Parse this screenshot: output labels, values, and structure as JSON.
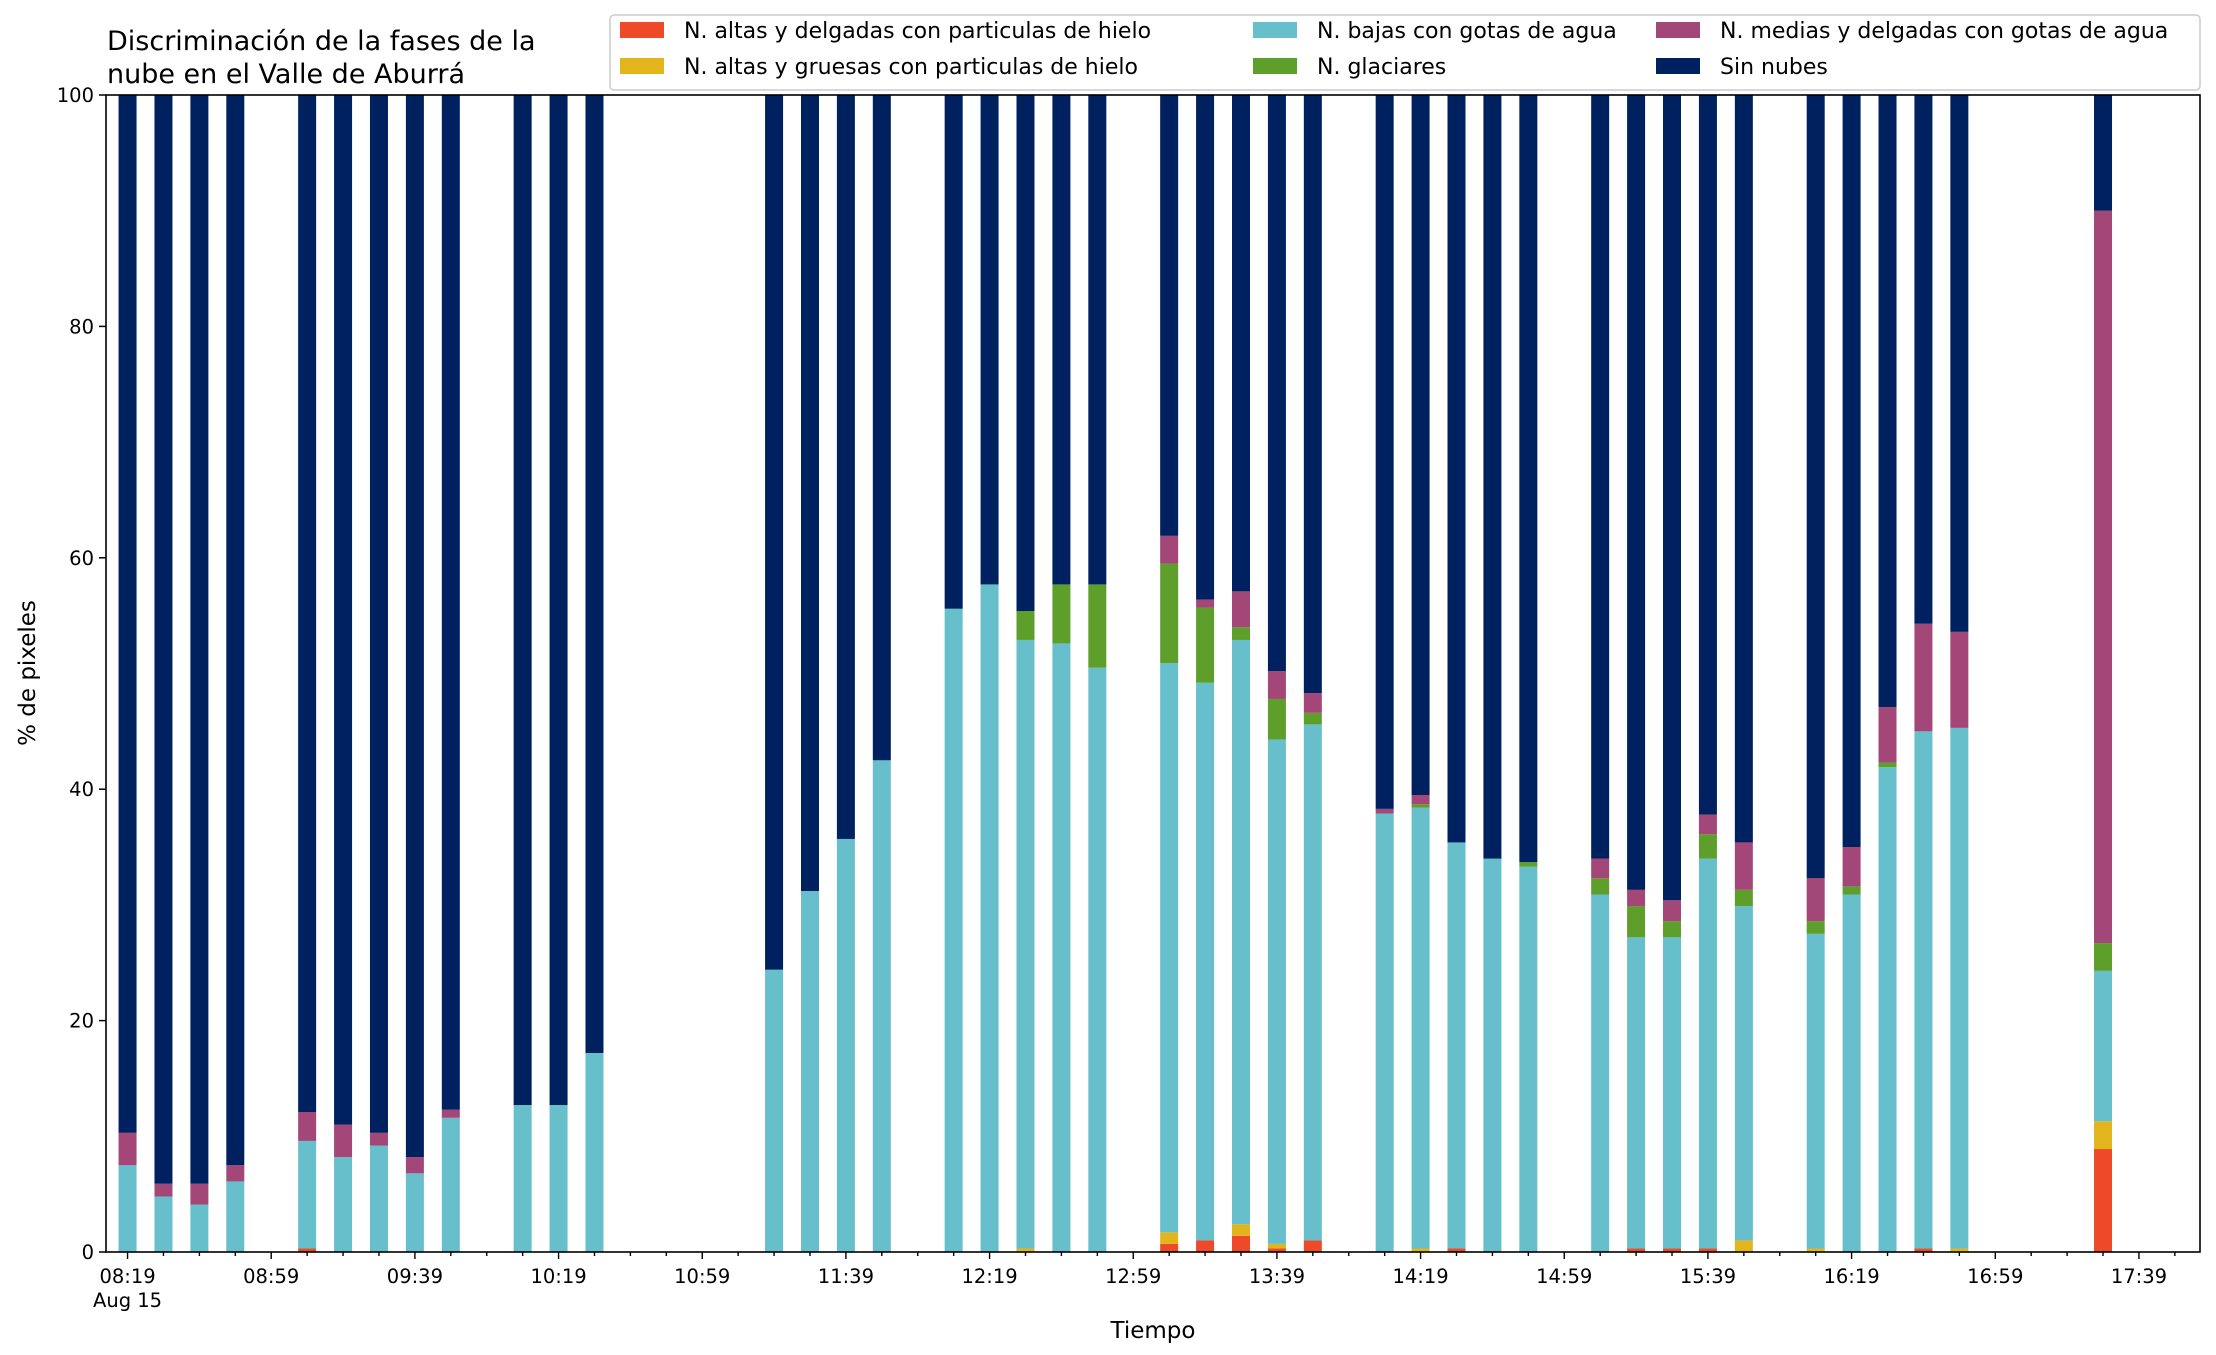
{
  "chart_data": {
    "type": "bar",
    "stacked": true,
    "title_lines": [
      "Discriminación de la fases de la",
      "nube en el Valle de Aburrá"
    ],
    "xlabel": "Tiempo",
    "ylabel": "% de pixeles",
    "ylim": [
      0,
      100
    ],
    "y_ticks": [
      "0",
      "20",
      "40",
      "60",
      "80",
      "100"
    ],
    "x_range_minutes": [
      "08:13",
      "17:56"
    ],
    "x_tick_labels": [
      "08:19",
      "08:59",
      "09:39",
      "10:19",
      "10:59",
      "11:39",
      "12:19",
      "12:59",
      "13:39",
      "14:19",
      "14:59",
      "15:39",
      "16:19",
      "16:59",
      "17:39"
    ],
    "x_date_label": "Aug 15",
    "legend_position": "top-right",
    "series": [
      {
        "name": "N. altas y delgadas con particulas de hielo",
        "color": "#ee4a2a"
      },
      {
        "name": "N. altas y gruesas con particulas de hielo",
        "color": "#e3b51c"
      },
      {
        "name": "N. bajas con gotas de agua",
        "color": "#66bfcb"
      },
      {
        "name": "N. glaciares",
        "color": "#5e9e2b"
      },
      {
        "name": "N. medias y delgadas con gotas de agua",
        "color": "#a24778"
      },
      {
        "name": "Sin nubes",
        "color": "#00215f"
      }
    ],
    "legend_columns": [
      [
        0,
        1
      ],
      [
        2,
        3
      ],
      [
        4,
        5
      ]
    ],
    "bars": [
      {
        "time": "08:19",
        "values": [
          0,
          0,
          7.5,
          0,
          2.8,
          89.7
        ]
      },
      {
        "time": "08:29",
        "values": [
          0,
          0,
          4.8,
          0,
          1.1,
          94.1
        ]
      },
      {
        "time": "08:39",
        "values": [
          0,
          0,
          4.1,
          0,
          1.8,
          94.1
        ]
      },
      {
        "time": "08:49",
        "values": [
          0,
          0,
          6.1,
          0,
          1.4,
          92.5
        ]
      },
      {
        "time": "09:09",
        "values": [
          0.3,
          0,
          9.3,
          0,
          2.5,
          87.9
        ]
      },
      {
        "time": "09:19",
        "values": [
          0,
          0,
          8.2,
          0,
          2.8,
          89.0
        ]
      },
      {
        "time": "09:29",
        "values": [
          0,
          0,
          9.2,
          0,
          1.1,
          89.7
        ]
      },
      {
        "time": "09:39",
        "values": [
          0,
          0,
          6.8,
          0,
          1.4,
          91.8
        ]
      },
      {
        "time": "09:49",
        "values": [
          0,
          0,
          11.6,
          0,
          0.7,
          87.7
        ]
      },
      {
        "time": "10:09",
        "values": [
          0,
          0,
          12.7,
          0,
          0,
          87.3
        ]
      },
      {
        "time": "10:19",
        "values": [
          0,
          0,
          12.7,
          0,
          0,
          87.3
        ]
      },
      {
        "time": "10:29",
        "values": [
          0,
          0,
          17.2,
          0,
          0,
          82.8
        ]
      },
      {
        "time": "11:19",
        "values": [
          0,
          0,
          24.4,
          0,
          0,
          75.6
        ]
      },
      {
        "time": "11:29",
        "values": [
          0,
          0,
          31.2,
          0,
          0,
          68.8
        ]
      },
      {
        "time": "11:39",
        "values": [
          0,
          0,
          35.7,
          0,
          0,
          64.3
        ]
      },
      {
        "time": "11:49",
        "values": [
          0,
          0,
          42.5,
          0,
          0,
          57.5
        ]
      },
      {
        "time": "12:09",
        "values": [
          0,
          0,
          55.6,
          0,
          0,
          44.4
        ]
      },
      {
        "time": "12:19",
        "values": [
          0,
          0,
          57.7,
          0,
          0,
          42.3
        ]
      },
      {
        "time": "12:29",
        "values": [
          0,
          0.3,
          52.6,
          2.5,
          0,
          44.6
        ]
      },
      {
        "time": "12:39",
        "values": [
          0,
          0,
          52.6,
          5.1,
          0,
          42.3
        ]
      },
      {
        "time": "12:49",
        "values": [
          0,
          0,
          50.5,
          7.2,
          0,
          42.3
        ]
      },
      {
        "time": "13:09",
        "values": [
          0.7,
          1.0,
          49.2,
          8.6,
          2.4,
          38.1
        ]
      },
      {
        "time": "13:19",
        "values": [
          1.0,
          0,
          48.2,
          6.5,
          0.7,
          43.6
        ]
      },
      {
        "time": "13:29",
        "values": [
          1.4,
          1.0,
          50.5,
          1.1,
          3.1,
          42.9
        ]
      },
      {
        "time": "13:39",
        "values": [
          0.3,
          0.4,
          43.6,
          3.5,
          2.4,
          49.8
        ]
      },
      {
        "time": "13:49",
        "values": [
          1.0,
          0,
          44.6,
          1.0,
          1.7,
          51.7
        ]
      },
      {
        "time": "14:09",
        "values": [
          0,
          0,
          37.9,
          0,
          0.4,
          61.7
        ]
      },
      {
        "time": "14:19",
        "values": [
          0,
          0.3,
          38.1,
          0.3,
          0.8,
          60.5
        ]
      },
      {
        "time": "14:29",
        "values": [
          0.3,
          0,
          35.1,
          0,
          0,
          64.6
        ]
      },
      {
        "time": "14:39",
        "values": [
          0,
          0,
          34.0,
          0,
          0,
          66.0
        ]
      },
      {
        "time": "14:49",
        "values": [
          0,
          0,
          33.3,
          0.4,
          0,
          66.3
        ]
      },
      {
        "time": "15:09",
        "values": [
          0,
          0,
          30.9,
          1.4,
          1.7,
          66.0
        ]
      },
      {
        "time": "15:19",
        "values": [
          0.3,
          0,
          26.9,
          2.7,
          1.4,
          68.7
        ]
      },
      {
        "time": "15:29",
        "values": [
          0.3,
          0,
          26.9,
          1.4,
          1.8,
          69.6
        ]
      },
      {
        "time": "15:39",
        "values": [
          0.3,
          0,
          33.7,
          2.1,
          1.7,
          62.2
        ]
      },
      {
        "time": "15:49",
        "values": [
          0,
          1.0,
          28.9,
          1.4,
          4.1,
          64.6
        ]
      },
      {
        "time": "16:09",
        "values": [
          0,
          0.3,
          27.2,
          1.1,
          3.7,
          67.7
        ]
      },
      {
        "time": "16:19",
        "values": [
          0,
          0,
          30.9,
          0.7,
          3.4,
          65.0
        ]
      },
      {
        "time": "16:29",
        "values": [
          0,
          0,
          41.9,
          0.4,
          4.8,
          52.9
        ]
      },
      {
        "time": "16:39",
        "values": [
          0.3,
          0,
          44.7,
          0,
          9.3,
          45.7
        ]
      },
      {
        "time": "16:49",
        "values": [
          0,
          0.3,
          45.0,
          0,
          8.3,
          46.4
        ]
      },
      {
        "time": "17:29",
        "values": [
          8.9,
          2.4,
          13.0,
          2.4,
          63.3,
          10.0
        ]
      }
    ]
  }
}
